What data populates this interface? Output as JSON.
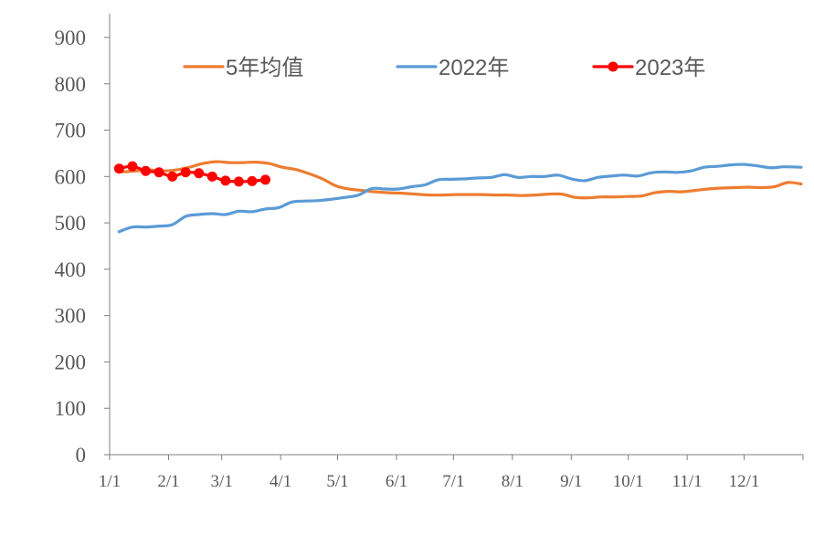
{
  "chart_data": {
    "type": "line",
    "title": "",
    "xlabel": "",
    "ylabel": "",
    "ylim": [
      0,
      900
    ],
    "y_ticks": [
      0,
      100,
      200,
      300,
      400,
      500,
      600,
      700,
      800,
      900
    ],
    "x_range": [
      "01-01",
      "12-31"
    ],
    "x_tick_labels": [
      "1/1",
      "2/1",
      "3/1",
      "4/1",
      "5/1",
      "6/1",
      "7/1",
      "8/1",
      "9/1",
      "10/1",
      "11/1",
      "12/1"
    ],
    "x_tick_dates": [
      "01-01",
      "02-01",
      "03-01",
      "04-01",
      "05-01",
      "06-01",
      "07-01",
      "08-01",
      "09-01",
      "10-01",
      "11-01",
      "12-01"
    ],
    "grid": false,
    "legend_position": "top",
    "series": [
      {
        "name": "5年均值",
        "color": "#ED7D31",
        "marker": false,
        "points": [
          [
            "01-08",
            610
          ],
          [
            "01-15",
            612
          ],
          [
            "01-22",
            614
          ],
          [
            "01-29",
            612
          ],
          [
            "02-05",
            614
          ],
          [
            "02-12",
            620
          ],
          [
            "02-19",
            628
          ],
          [
            "02-26",
            632
          ],
          [
            "03-05",
            630
          ],
          [
            "03-12",
            630
          ],
          [
            "03-19",
            631
          ],
          [
            "03-26",
            628
          ],
          [
            "04-02",
            620
          ],
          [
            "04-09",
            615
          ],
          [
            "04-16",
            606
          ],
          [
            "04-23",
            595
          ],
          [
            "04-30",
            580
          ],
          [
            "05-07",
            573
          ],
          [
            "05-14",
            570
          ],
          [
            "05-21",
            567
          ],
          [
            "05-28",
            565
          ],
          [
            "06-04",
            564
          ],
          [
            "06-11",
            562
          ],
          [
            "06-18",
            560
          ],
          [
            "06-25",
            560
          ],
          [
            "07-02",
            561
          ],
          [
            "07-09",
            561
          ],
          [
            "07-16",
            561
          ],
          [
            "07-23",
            560
          ],
          [
            "07-30",
            560
          ],
          [
            "08-06",
            559
          ],
          [
            "08-13",
            560
          ],
          [
            "08-20",
            562
          ],
          [
            "08-27",
            562
          ],
          [
            "09-03",
            555
          ],
          [
            "09-10",
            554
          ],
          [
            "09-17",
            556
          ],
          [
            "09-24",
            556
          ],
          [
            "10-01",
            557
          ],
          [
            "10-08",
            558
          ],
          [
            "10-15",
            565
          ],
          [
            "10-22",
            568
          ],
          [
            "10-29",
            567
          ],
          [
            "11-05",
            570
          ],
          [
            "11-12",
            573
          ],
          [
            "11-19",
            575
          ],
          [
            "11-26",
            576
          ],
          [
            "12-03",
            577
          ],
          [
            "12-10",
            576
          ],
          [
            "12-17",
            578
          ],
          [
            "12-24",
            587
          ],
          [
            "12-31",
            584
          ]
        ]
      },
      {
        "name": "2022年",
        "color": "#5B9BD5",
        "marker": false,
        "points": [
          [
            "01-06",
            481
          ],
          [
            "01-13",
            491
          ],
          [
            "01-20",
            491
          ],
          [
            "01-27",
            493
          ],
          [
            "02-03",
            496
          ],
          [
            "02-10",
            514
          ],
          [
            "02-17",
            518
          ],
          [
            "02-24",
            520
          ],
          [
            "03-03",
            518
          ],
          [
            "03-10",
            525
          ],
          [
            "03-17",
            524
          ],
          [
            "03-24",
            530
          ],
          [
            "03-31",
            533
          ],
          [
            "04-07",
            545
          ],
          [
            "04-14",
            547
          ],
          [
            "04-21",
            548
          ],
          [
            "04-28",
            551
          ],
          [
            "05-05",
            555
          ],
          [
            "05-12",
            560
          ],
          [
            "05-19",
            574
          ],
          [
            "05-26",
            573
          ],
          [
            "06-02",
            573
          ],
          [
            "06-09",
            578
          ],
          [
            "06-16",
            582
          ],
          [
            "06-23",
            593
          ],
          [
            "06-30",
            594
          ],
          [
            "07-07",
            595
          ],
          [
            "07-14",
            597
          ],
          [
            "07-21",
            598
          ],
          [
            "07-28",
            604
          ],
          [
            "08-04",
            598
          ],
          [
            "08-11",
            600
          ],
          [
            "08-18",
            600
          ],
          [
            "08-25",
            603
          ],
          [
            "09-01",
            595
          ],
          [
            "09-08",
            591
          ],
          [
            "09-15",
            598
          ],
          [
            "09-22",
            601
          ],
          [
            "09-29",
            603
          ],
          [
            "10-06",
            601
          ],
          [
            "10-13",
            608
          ],
          [
            "10-20",
            610
          ],
          [
            "10-27",
            609
          ],
          [
            "11-03",
            612
          ],
          [
            "11-10",
            620
          ],
          [
            "11-17",
            622
          ],
          [
            "11-24",
            625
          ],
          [
            "12-01",
            626
          ],
          [
            "12-08",
            623
          ],
          [
            "12-15",
            619
          ],
          [
            "12-22",
            621
          ],
          [
            "12-31",
            620
          ]
        ]
      },
      {
        "name": "2023年",
        "color": "#FF0000",
        "marker": true,
        "points": [
          [
            "01-06",
            617
          ],
          [
            "01-13",
            622
          ],
          [
            "01-20",
            612
          ],
          [
            "01-27",
            609
          ],
          [
            "02-03",
            600
          ],
          [
            "02-10",
            609
          ],
          [
            "02-17",
            607
          ],
          [
            "02-24",
            600
          ],
          [
            "03-03",
            591
          ],
          [
            "03-10",
            589
          ],
          [
            "03-17",
            590
          ],
          [
            "03-24",
            593
          ]
        ]
      }
    ]
  }
}
